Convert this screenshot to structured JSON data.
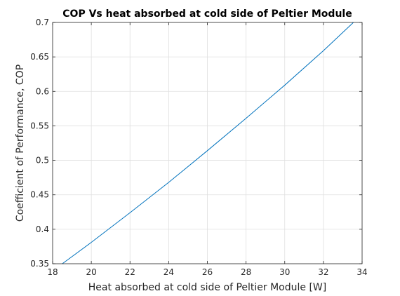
{
  "chart_data": {
    "type": "line",
    "title": "COP Vs heat absorbed at cold side of Peltier Module",
    "xlabel": "Heat absorbed at cold side of Peltier Module [W]",
    "ylabel": "Coefficient of Performance, COP",
    "xlim": [
      18,
      34
    ],
    "ylim": [
      0.35,
      0.7
    ],
    "xticks": [
      18,
      20,
      22,
      24,
      26,
      28,
      30,
      32,
      34
    ],
    "yticks": [
      0.35,
      0.4,
      0.45,
      0.5,
      0.55,
      0.6,
      0.65,
      0.7
    ],
    "xtick_labels": [
      "18",
      "20",
      "22",
      "24",
      "26",
      "28",
      "30",
      "32",
      "34"
    ],
    "ytick_labels": [
      "0.35",
      "0.4",
      "0.45",
      "0.5",
      "0.55",
      "0.6",
      "0.65",
      "0.7"
    ],
    "grid": true,
    "legend": "none",
    "series": [
      {
        "color": "#0072bd",
        "x": [
          18.5,
          20,
          22,
          24,
          26,
          28,
          30,
          32,
          33.55
        ],
        "y": [
          0.35,
          0.381,
          0.424,
          0.468,
          0.514,
          0.561,
          0.609,
          0.659,
          0.7
        ]
      }
    ]
  }
}
